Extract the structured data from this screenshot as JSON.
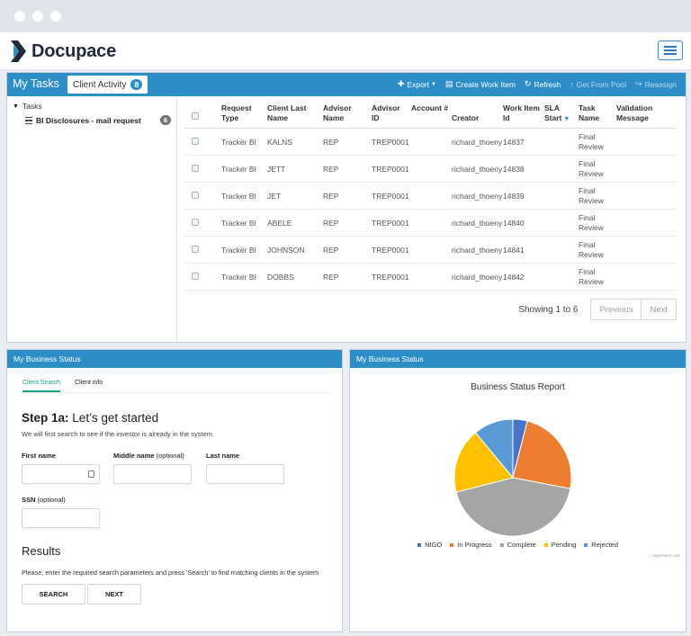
{
  "app": {
    "name": "Docupace"
  },
  "tasks_panel": {
    "title": "My Tasks",
    "tab_label": "Client Activity",
    "tab_badge": "8",
    "toolbar": [
      {
        "label": "Export",
        "icon": "plus-icon",
        "disabled": false,
        "caret": true
      },
      {
        "label": "Create Work Item",
        "icon": "file-icon",
        "disabled": false
      },
      {
        "label": "Refresh",
        "icon": "refresh-icon",
        "disabled": false
      },
      {
        "label": "Get From Pool",
        "icon": "arrow-up-icon",
        "disabled": true
      },
      {
        "label": "Reassign",
        "icon": "share-icon",
        "disabled": true
      }
    ],
    "tree": {
      "root_label": "Tasks",
      "item_label": "BI Disclosures - mail request",
      "item_count": "6"
    },
    "columns": [
      "Request Type",
      "Client Last Name",
      "Advisor Name",
      "Advisor ID",
      "Account #",
      "Creator",
      "Work Item Id",
      "SLA Start",
      "Task Name",
      "Validation Message"
    ],
    "rows": [
      {
        "request_type": "Tracker BI",
        "client_last_name": "KALNS",
        "advisor_name": "REP",
        "advisor_id": "TREP0001",
        "account": "",
        "creator": "richard_thoeny",
        "work_item_id": "14837",
        "sla_start": "",
        "task_name": "Final Review",
        "validation": ""
      },
      {
        "request_type": "Tracker BI",
        "client_last_name": "JETT",
        "advisor_name": "REP",
        "advisor_id": "TREP0001",
        "account": "",
        "creator": "richard_thoeny",
        "work_item_id": "14838",
        "sla_start": "",
        "task_name": "Final Review",
        "validation": ""
      },
      {
        "request_type": "Tracker BI",
        "client_last_name": "JET",
        "advisor_name": "REP",
        "advisor_id": "TREP0001",
        "account": "",
        "creator": "richard_thoeny",
        "work_item_id": "14839",
        "sla_start": "",
        "task_name": "Final Review",
        "validation": ""
      },
      {
        "request_type": "Tracker BI",
        "client_last_name": "ABELE",
        "advisor_name": "REP",
        "advisor_id": "TREP0001",
        "account": "",
        "creator": "richard_thoeny",
        "work_item_id": "14840",
        "sla_start": "",
        "task_name": "Final Review",
        "validation": ""
      },
      {
        "request_type": "Tracker BI",
        "client_last_name": "JOHNSON",
        "advisor_name": "REP",
        "advisor_id": "TREP0001",
        "account": "",
        "creator": "richard_thoeny",
        "work_item_id": "14841",
        "sla_start": "",
        "task_name": "Final Review",
        "validation": ""
      },
      {
        "request_type": "Tracker BI",
        "client_last_name": "DOBBS",
        "advisor_name": "REP",
        "advisor_id": "TREP0001",
        "account": "",
        "creator": "richard_thoeny",
        "work_item_id": "14842",
        "sla_start": "",
        "task_name": "Final Review",
        "validation": ""
      }
    ],
    "pager": {
      "info": "Showing 1 to 6",
      "previous": "Previous",
      "next": "Next"
    }
  },
  "left_status": {
    "title": "My Business Status",
    "tabs": [
      "Client Search",
      "Client info"
    ],
    "step_strong": "Step 1a:",
    "step_rest": "Let’s get started",
    "step_sub": "We will first search to see if the investor is already in the system.",
    "fields": {
      "first_name": "First name",
      "middle_name": "Middle name",
      "middle_name_note": "(optional)",
      "last_name": "Last name",
      "ssn": "SSN",
      "ssn_note": "(optional)"
    },
    "results_title": "Results",
    "results_sub": "Please, enter the required search parameters and press 'Search' to find matching clients in the system",
    "search_button": "SEARCH",
    "next_button": "NEXT"
  },
  "right_status": {
    "title": "My Business Status",
    "credits": "Highcharts.com"
  },
  "chart_data": {
    "type": "pie",
    "title": "Business Status Report",
    "categories": [
      "NIGO",
      "In Progress",
      "Complete",
      "Pending",
      "Rejected"
    ],
    "values": [
      4,
      24,
      43,
      18,
      11
    ],
    "colors": [
      "#4a73c4",
      "#ed7d31",
      "#a5a5a5",
      "#ffc000",
      "#5b9bd5"
    ],
    "legend": "bottom"
  },
  "colors": {
    "accent": "#2d8ec7",
    "tab_active": "#1aa38a"
  }
}
